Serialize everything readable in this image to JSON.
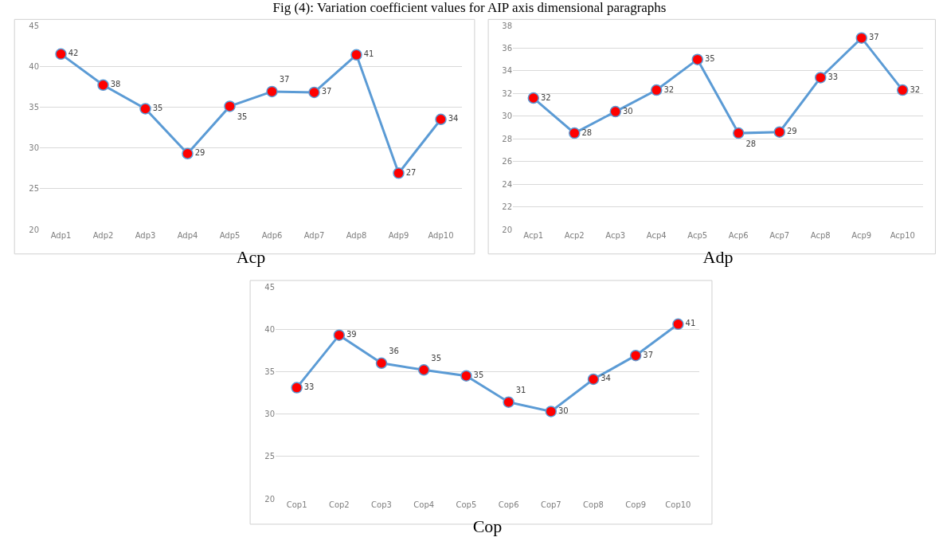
{
  "chart_data": [
    {
      "type": "line",
      "title": "Fig (4): Variation coefficient values for AIP axis dimensional paragraphs",
      "xlabel": "Acp",
      "categories": [
        "Adp1",
        "Adp2",
        "Adp3",
        "Adp4",
        "Adp5",
        "Adp6",
        "Adp7",
        "Adp8",
        "Adp9",
        "Adp10"
      ],
      "series": [
        {
          "color": "#5b9bd5",
          "values": [
            41.5,
            37.7,
            34.8,
            29.3,
            35.1,
            36.9,
            36.8,
            41.4,
            26.9,
            33.5
          ],
          "value_labels": [
            "42",
            "38",
            "35",
            "29",
            "35",
            "37",
            "37",
            "41",
            "27",
            "34"
          ]
        }
      ],
      "ylim": [
        20,
        45
      ],
      "yticks": [
        20,
        25,
        30,
        35,
        40,
        45
      ],
      "grid": "y",
      "marker": "circle",
      "line_style": "solid"
    },
    {
      "type": "line",
      "xlabel": "Adp",
      "categories": [
        "Acp1",
        "Acp2",
        "Acp3",
        "Acp4",
        "Acp5",
        "Acp6",
        "Acp7",
        "Acp8",
        "Acp9",
        "Acp10"
      ],
      "series": [
        {
          "color": "#5b9bd5",
          "values": [
            31.6,
            28.5,
            30.4,
            32.3,
            35.0,
            28.5,
            28.6,
            33.4,
            36.9,
            32.3
          ],
          "value_labels": [
            "32",
            "28",
            "30",
            "32",
            "35",
            "28",
            "29",
            "33",
            "37",
            "32"
          ]
        }
      ],
      "ylim": [
        20,
        38
      ],
      "yticks": [
        20,
        22,
        24,
        26,
        28,
        30,
        32,
        34,
        36,
        38
      ],
      "grid": "y",
      "marker": "circle",
      "line_style": "solid"
    },
    {
      "type": "line",
      "xlabel": "Cop",
      "categories": [
        "Cop1",
        "Cop2",
        "Cop3",
        "Cop4",
        "Cop5",
        "Cop6",
        "Cop7",
        "Cop8",
        "Cop9",
        "Cop10"
      ],
      "series": [
        {
          "color": "#5b9bd5",
          "values": [
            33.1,
            39.3,
            36.0,
            35.2,
            34.5,
            31.4,
            30.3,
            34.1,
            36.9,
            40.6
          ],
          "value_labels": [
            "33",
            "39",
            "36",
            "35",
            "35",
            "31",
            "30",
            "34",
            "37",
            "41"
          ]
        }
      ],
      "ylim": [
        20,
        45
      ],
      "yticks": [
        20,
        25,
        30,
        35,
        40,
        45
      ],
      "grid": "y",
      "marker": "circle",
      "line_style": "solid"
    }
  ]
}
